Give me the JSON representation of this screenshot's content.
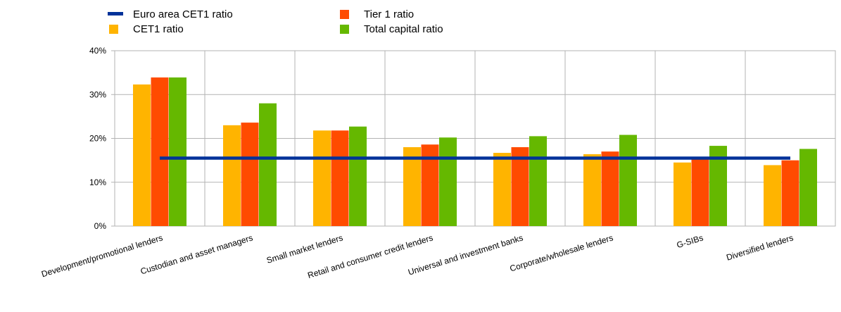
{
  "chart_data": {
    "type": "bar",
    "categories": [
      "Development/promotional lenders",
      "Custodian and asset managers",
      "Small market lenders",
      "Retail and consumer credit lenders",
      "Universal and investment banks",
      "Corporate/wholesale lenders",
      "G-SIBs",
      "Diversified lenders"
    ],
    "series": [
      {
        "name": "CET1  ratio",
        "color": "#FFB400",
        "values": [
          32.3,
          23.0,
          21.8,
          18.0,
          16.7,
          16.4,
          14.5,
          13.9
        ]
      },
      {
        "name": "Tier 1 ratio",
        "color": "#FF4B00",
        "values": [
          33.9,
          23.6,
          21.8,
          18.6,
          18.0,
          17.0,
          15.5,
          15.0
        ]
      },
      {
        "name": "Total capital ratio",
        "color": "#65B800",
        "values": [
          33.9,
          28.0,
          22.7,
          20.2,
          20.5,
          20.8,
          18.3,
          17.6
        ]
      }
    ],
    "reference_line": {
      "name": "Euro area CET1  ratio",
      "color": "#003299",
      "value": 15.5
    },
    "yticks": [
      "0%",
      "10%",
      "20%",
      "30%",
      "40%"
    ],
    "ylim": [
      0,
      40
    ],
    "grid": true,
    "legend_position": "top-left"
  }
}
